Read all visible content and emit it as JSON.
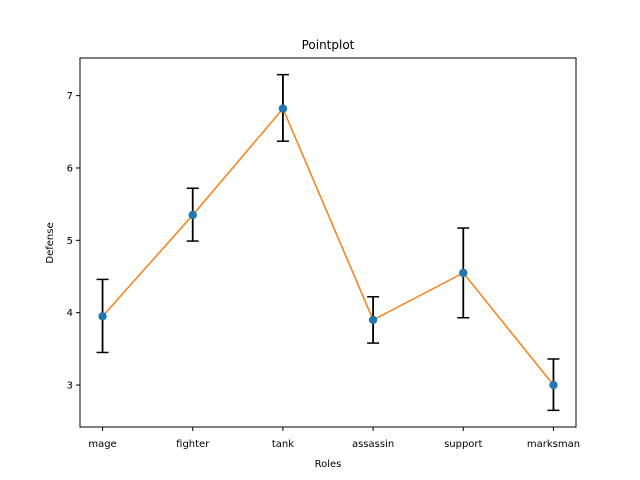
{
  "chart_data": {
    "type": "line",
    "title": "Pointplot",
    "xlabel": "Roles",
    "ylabel": "Defense",
    "categories": [
      "mage",
      "fighter",
      "tank",
      "assassin",
      "support",
      "marksman"
    ],
    "series": [
      {
        "values": [
          3.95,
          5.35,
          6.82,
          3.9,
          4.55,
          3.0
        ],
        "ci_lower": [
          3.45,
          4.99,
          6.37,
          3.58,
          3.93,
          2.65
        ],
        "ci_upper": [
          4.46,
          5.72,
          7.29,
          4.22,
          5.17,
          3.36
        ]
      }
    ],
    "yticks": [
      3,
      4,
      5,
      6,
      7
    ],
    "ylim": [
      2.42,
      7.52
    ],
    "grid": false,
    "colors": {
      "line": "#ff7f0e",
      "marker": "#1f77b4",
      "errorbar": "#000000"
    }
  }
}
